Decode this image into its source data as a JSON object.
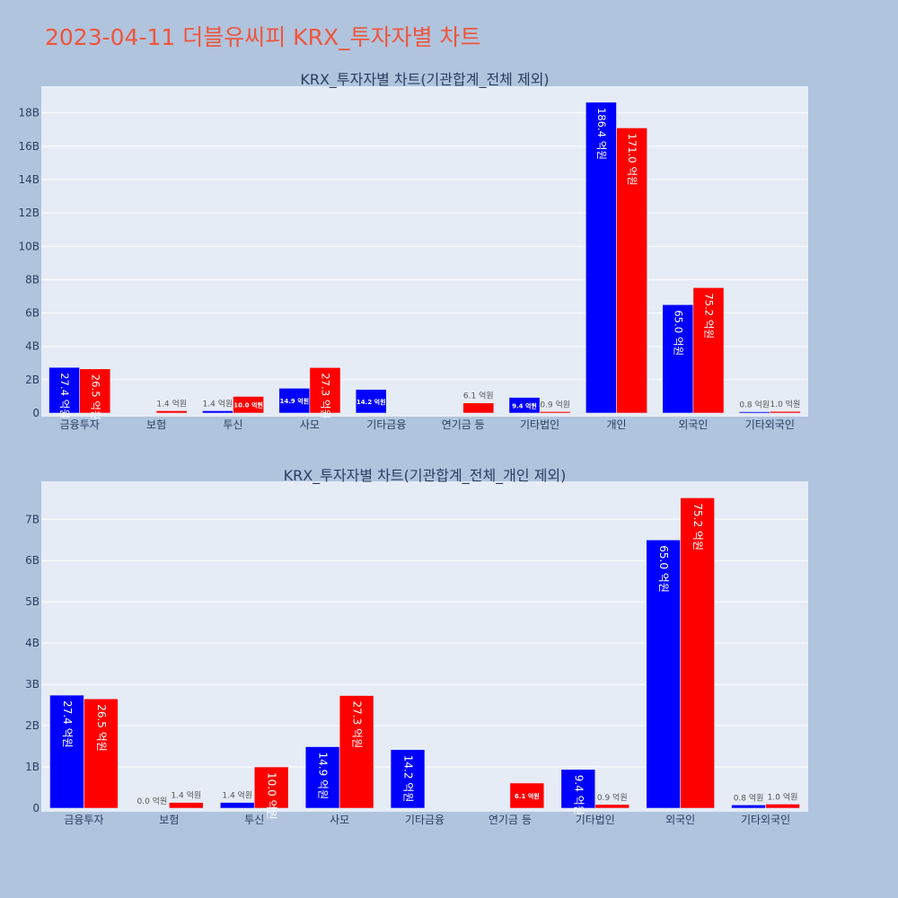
{
  "page_title": "2023-04-11 더블유씨피 KRX_투자자별 차트",
  "colors": {
    "sell": "#0000ff",
    "buy": "#ff0000",
    "plot_bg": "#e5ecf6",
    "paper_bg": "#b0c4de",
    "title": "#ef553b"
  },
  "chart_data": [
    {
      "type": "bar",
      "title": "KRX_투자자별 차트(기관합계_전체 제외)",
      "categories": [
        "금융투자",
        "보험",
        "투신",
        "사모",
        "기타금융",
        "연기금 등",
        "기타법인",
        "개인",
        "외국인",
        "기타외국인"
      ],
      "series": [
        {
          "values": [
            2.74,
            0.0,
            0.14,
            1.49,
            1.42,
            0.0,
            0.94,
            18.64,
            6.5,
            0.08
          ],
          "labels": [
            "27.4 억원",
            "",
            "1.4 억원",
            "14.9 억원",
            "14.2 억원",
            "",
            "9.4 억원",
            "186.4 억원",
            "65.0 억원",
            "0.8 억원"
          ]
        },
        {
          "values": [
            2.65,
            0.14,
            1.0,
            2.73,
            0.0,
            0.61,
            0.09,
            17.1,
            7.52,
            0.1
          ],
          "labels": [
            "26.5 억원",
            "1.4 억원",
            "10.0 억원",
            "27.3 억원",
            "",
            "6.1 억원",
            "0.9 억원",
            "171.0 억원",
            "75.2 억원",
            "1.0 억원"
          ]
        }
      ],
      "yticks": [
        {
          "v": 0,
          "label": "0"
        },
        {
          "v": 2,
          "label": "2B"
        },
        {
          "v": 4,
          "label": "4B"
        },
        {
          "v": 6,
          "label": "6B"
        },
        {
          "v": 8,
          "label": "8B"
        },
        {
          "v": 10,
          "label": "10B"
        },
        {
          "v": 12,
          "label": "12B"
        },
        {
          "v": 14,
          "label": "14B"
        },
        {
          "v": 16,
          "label": "16B"
        },
        {
          "v": 18,
          "label": "18B"
        }
      ],
      "ylim": [
        0,
        19.6
      ],
      "grid": true
    },
    {
      "type": "bar",
      "title": "KRX_투자자별 차트(기관합계_전체_개인 제외)",
      "categories": [
        "금융투자",
        "보험",
        "투신",
        "사모",
        "기타금융",
        "연기금 등",
        "기타법인",
        "외국인",
        "기타외국인"
      ],
      "series": [
        {
          "values": [
            2.74,
            0.0,
            0.14,
            1.49,
            1.42,
            0.0,
            0.94,
            6.5,
            0.08
          ],
          "labels": [
            "27.4 억원",
            "0.0 억원",
            "1.4 억원",
            "14.9 억원",
            "14.2 억원",
            "",
            "9.4 억원",
            "65.0 억원",
            "0.8 억원"
          ]
        },
        {
          "values": [
            2.65,
            0.14,
            1.0,
            2.73,
            0.0,
            0.61,
            0.09,
            7.52,
            0.1
          ],
          "labels": [
            "26.5 억원",
            "1.4 억원",
            "10.0 억원",
            "27.3 억원",
            "",
            "6.1 억원",
            "0.9 억원",
            "75.2 억원",
            "1.0 억원"
          ]
        }
      ],
      "yticks": [
        {
          "v": 0,
          "label": "0"
        },
        {
          "v": 1,
          "label": "1B"
        },
        {
          "v": 2,
          "label": "2B"
        },
        {
          "v": 3,
          "label": "3B"
        },
        {
          "v": 4,
          "label": "4B"
        },
        {
          "v": 5,
          "label": "5B"
        },
        {
          "v": 6,
          "label": "6B"
        },
        {
          "v": 7,
          "label": "7B"
        }
      ],
      "ylim": [
        0,
        7.92
      ],
      "grid": true
    }
  ]
}
